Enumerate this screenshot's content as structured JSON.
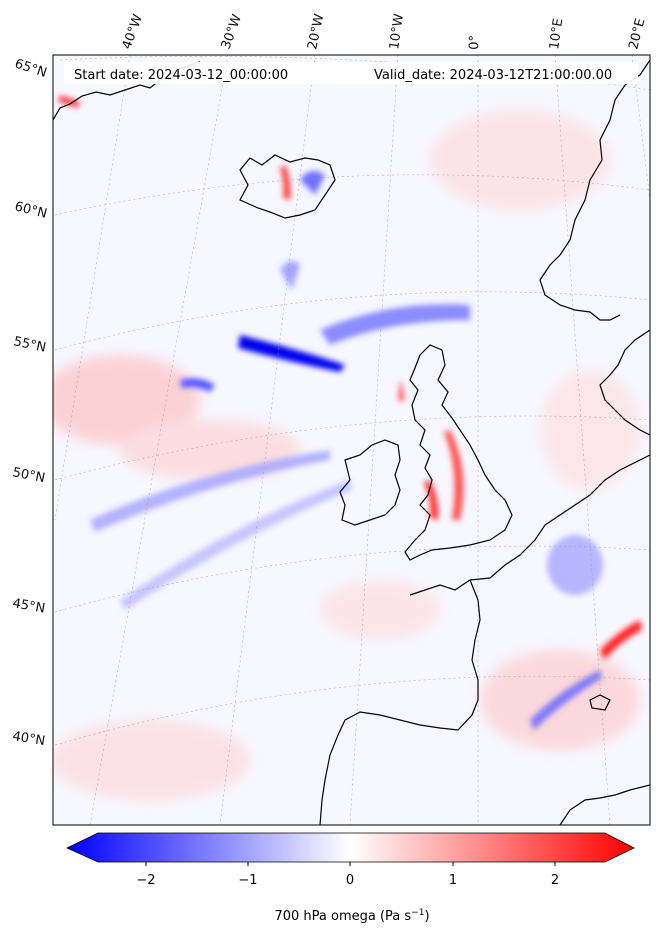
{
  "header": {
    "start_date": "Start date: 2024-03-12_00:00:00",
    "valid_date": "Valid_date: 2024-03-12T21:00:00.00"
  },
  "longitude_labels": [
    "40°W",
    "30°W",
    "20°W",
    "10°W",
    "0°",
    "10°E",
    "20°E"
  ],
  "latitude_labels": [
    "65°N",
    "60°N",
    "55°N",
    "50°N",
    "45°N",
    "40°N"
  ],
  "colorbar": {
    "label": "700 hPa omega (Pa s",
    "label_superscript": "−1",
    "label_close": ")",
    "ticks": [
      "−2",
      "−1",
      "0",
      "1",
      "2"
    ],
    "range": [
      -2.5,
      2.5
    ],
    "colors": {
      "negative": "#0000ff",
      "zero": "#ffffff",
      "positive": "#ff0000"
    }
  },
  "field": {
    "variable": "700 hPa omega",
    "colors": {
      "ascent": "#0000ff",
      "descent": "#ff0000",
      "coastline": "#000000"
    }
  }
}
